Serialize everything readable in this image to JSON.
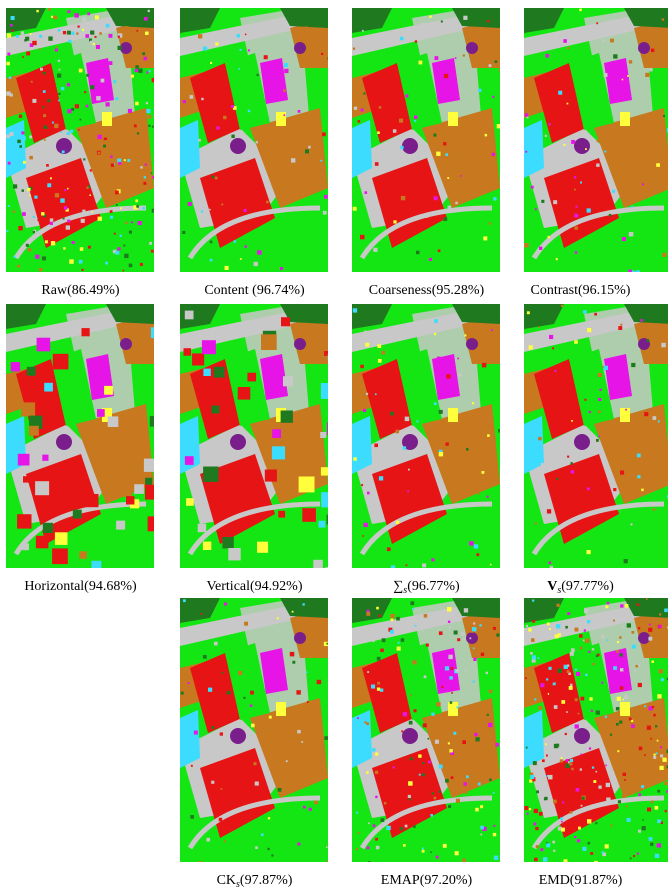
{
  "figure": {
    "tiles": [
      {
        "id": "raw",
        "label": "Raw(86.49%)",
        "noise": "high"
      },
      {
        "id": "content",
        "label": "Content (96.74%)",
        "noise": "low"
      },
      {
        "id": "coarseness",
        "label": "Coarseness(95.28%)",
        "noise": "low"
      },
      {
        "id": "contrast",
        "label": "Contrast(96.15%)",
        "noise": "low"
      },
      {
        "id": "horizontal",
        "label": "Horizontal(94.68%)",
        "noise": "blob"
      },
      {
        "id": "vertical",
        "label": "Vertical(94.92%)",
        "noise": "blob"
      },
      {
        "id": "sum",
        "label_prefix": "∑",
        "label_sub": "s",
        "label_suffix": "(96.77%)",
        "noise": "low"
      },
      {
        "id": "vs",
        "label_prefix": "V",
        "label_sub": "s",
        "label_suffix": "(97.77%)",
        "noise": "low"
      },
      {
        "id": "cks",
        "label_prefix": "CK",
        "label_sub": "s",
        "label_suffix": "(97.87%)",
        "noise": "low"
      },
      {
        "id": "emap",
        "label": "EMAP(97.20%)",
        "noise": "mid"
      },
      {
        "id": "emd",
        "label": "EMD(91.87%)",
        "noise": "high"
      }
    ],
    "class_colors": {
      "meadows": "#14e614",
      "trees": "#1f7a1f",
      "asphalt": "#c8c8c8",
      "bitumen": "#c8781e",
      "bricks": "#e61414",
      "roofs": "#e614e6",
      "shadow": "#7a1e8c",
      "gravel": "#ffff3c",
      "soil": "#3cdcff"
    }
  }
}
